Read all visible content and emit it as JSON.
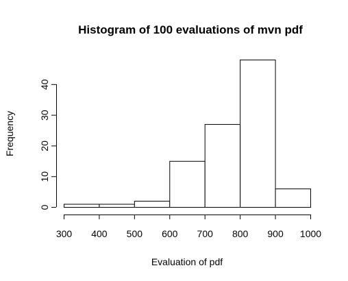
{
  "chart_data": {
    "type": "bar",
    "title": "Histogram of 100 evaluations of mvn pdf",
    "xlabel": "Evaluation of pdf",
    "ylabel": "Frequency",
    "bins": [
      {
        "from": 300,
        "to": 400,
        "count": 1
      },
      {
        "from": 400,
        "to": 500,
        "count": 1
      },
      {
        "from": 500,
        "to": 600,
        "count": 2
      },
      {
        "from": 600,
        "to": 700,
        "count": 15
      },
      {
        "from": 700,
        "to": 800,
        "count": 27
      },
      {
        "from": 800,
        "to": 900,
        "count": 48
      },
      {
        "from": 900,
        "to": 1000,
        "count": 6
      }
    ],
    "xlim": [
      300,
      1000
    ],
    "ylim": [
      0,
      48
    ],
    "x_ticks": [
      "300",
      "400",
      "500",
      "600",
      "700",
      "800",
      "900",
      "1000"
    ],
    "y_ticks": [
      "0",
      "10",
      "20",
      "30",
      "40"
    ],
    "grid": false,
    "legend": "none"
  }
}
